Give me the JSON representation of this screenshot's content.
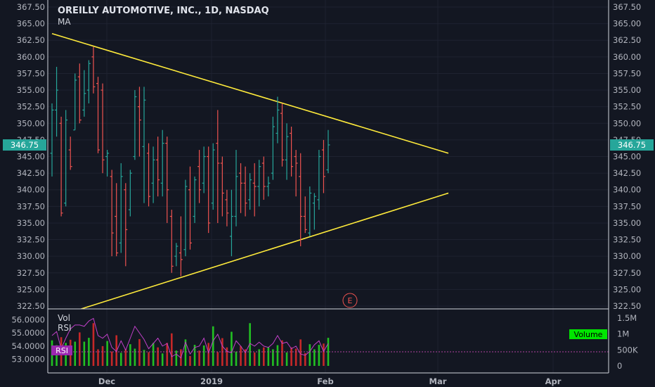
{
  "header": {
    "title": "OREILLY AUTOMOTIVE, INC., 1D, NASDAQ",
    "indicator": "MA"
  },
  "price": {
    "current": "346.75",
    "colors": {
      "up": "#26a69a",
      "down": "#ef5350",
      "trend": "#ffeb3b",
      "tag": "#26a69a"
    }
  },
  "earnings_marker": "E",
  "lower_pane": {
    "labels": [
      "Vol",
      "RSI"
    ],
    "rsi_tag": "RSI",
    "volume_tag": "Volume",
    "left_ticks": [
      "56.0000",
      "55.0000",
      "54.0000",
      "53.0000"
    ],
    "right_ticks": [
      "1.5M",
      "1M",
      "500K",
      "0"
    ]
  },
  "chart_data": {
    "type": "ohlc",
    "title": "OREILLY AUTOMOTIVE, INC., 1D, NASDAQ",
    "y_ticks": [
      "367.50",
      "365.00",
      "362.50",
      "360.00",
      "357.50",
      "355.00",
      "352.50",
      "350.00",
      "347.50",
      "345.00",
      "342.50",
      "340.00",
      "337.50",
      "335.00",
      "332.50",
      "330.00",
      "327.50",
      "325.00",
      "322.50"
    ],
    "ylim": [
      322.5,
      367.5
    ],
    "x_ticks": [
      "Dec",
      "2019",
      "Feb",
      "Mar",
      "Apr"
    ],
    "grid": true,
    "bars": [
      {
        "o": 345.5,
        "h": 353.0,
        "l": 342.0,
        "c": 352.0
      },
      {
        "o": 352.0,
        "h": 358.5,
        "l": 348.0,
        "c": 355.0
      },
      {
        "o": 350.0,
        "h": 351.0,
        "l": 336.0,
        "c": 336.5
      },
      {
        "o": 338.0,
        "h": 352.0,
        "l": 337.5,
        "c": 350.5
      },
      {
        "o": 346.0,
        "h": 348.0,
        "l": 343.0,
        "c": 343.5
      },
      {
        "o": 349.0,
        "h": 357.5,
        "l": 349.0,
        "c": 356.5
      },
      {
        "o": 357.0,
        "h": 359.0,
        "l": 350.0,
        "c": 350.5
      },
      {
        "o": 352.0,
        "h": 358.0,
        "l": 351.0,
        "c": 354.5
      },
      {
        "o": 355.0,
        "h": 359.5,
        "l": 353.0,
        "c": 359.0
      },
      {
        "o": 360.0,
        "h": 361.5,
        "l": 354.5,
        "c": 355.5
      },
      {
        "o": 356.0,
        "h": 357.0,
        "l": 345.5,
        "c": 346.0
      },
      {
        "o": 355.0,
        "h": 356.0,
        "l": 342.5,
        "c": 344.5
      },
      {
        "o": 345.0,
        "h": 346.0,
        "l": 342.0,
        "c": 345.5
      },
      {
        "o": 342.0,
        "h": 343.0,
        "l": 330.0,
        "c": 333.5
      },
      {
        "o": 336.0,
        "h": 341.0,
        "l": 330.0,
        "c": 330.5
      },
      {
        "o": 332.0,
        "h": 344.0,
        "l": 330.5,
        "c": 342.0
      },
      {
        "o": 340.0,
        "h": 341.0,
        "l": 328.5,
        "c": 334.0
      },
      {
        "o": 337.0,
        "h": 343.0,
        "l": 336.0,
        "c": 342.5
      },
      {
        "o": 345.0,
        "h": 355.0,
        "l": 344.5,
        "c": 354.0
      },
      {
        "o": 352.5,
        "h": 355.5,
        "l": 345.0,
        "c": 350.5
      },
      {
        "o": 346.5,
        "h": 355.5,
        "l": 338.0,
        "c": 353.5
      },
      {
        "o": 345.5,
        "h": 347.0,
        "l": 337.5,
        "c": 339.0
      },
      {
        "o": 341.0,
        "h": 346.5,
        "l": 338.0,
        "c": 344.5
      },
      {
        "o": 344.5,
        "h": 348.0,
        "l": 339.0,
        "c": 341.5
      },
      {
        "o": 341.0,
        "h": 349.0,
        "l": 339.0,
        "c": 347.0
      },
      {
        "o": 347.0,
        "h": 348.0,
        "l": 335.0,
        "c": 340.0
      },
      {
        "o": 336.0,
        "h": 337.0,
        "l": 327.5,
        "c": 328.5
      },
      {
        "o": 330.0,
        "h": 332.0,
        "l": 328.5,
        "c": 331.5
      },
      {
        "o": 330.5,
        "h": 336.0,
        "l": 327.0,
        "c": 329.5
      },
      {
        "o": 331.0,
        "h": 341.5,
        "l": 330.0,
        "c": 340.5
      },
      {
        "o": 340.0,
        "h": 343.5,
        "l": 331.0,
        "c": 332.0
      },
      {
        "o": 336.0,
        "h": 342.0,
        "l": 335.0,
        "c": 341.5
      },
      {
        "o": 343.5,
        "h": 346.0,
        "l": 338.0,
        "c": 340.0
      },
      {
        "o": 341.0,
        "h": 346.5,
        "l": 339.5,
        "c": 345.0
      },
      {
        "o": 345.0,
        "h": 346.5,
        "l": 333.5,
        "c": 335.0
      },
      {
        "o": 338.0,
        "h": 347.0,
        "l": 337.0,
        "c": 346.0
      },
      {
        "o": 347.0,
        "h": 352.0,
        "l": 335.0,
        "c": 344.0
      },
      {
        "o": 344.0,
        "h": 345.0,
        "l": 336.0,
        "c": 339.5
      },
      {
        "o": 338.5,
        "h": 340.0,
        "l": 334.5,
        "c": 336.5
      },
      {
        "o": 333.0,
        "h": 340.0,
        "l": 330.0,
        "c": 336.0
      },
      {
        "o": 336.0,
        "h": 346.0,
        "l": 334.5,
        "c": 342.0
      },
      {
        "o": 342.5,
        "h": 344.0,
        "l": 336.5,
        "c": 341.0
      },
      {
        "o": 341.0,
        "h": 343.5,
        "l": 336.0,
        "c": 338.0
      },
      {
        "o": 338.5,
        "h": 342.5,
        "l": 337.0,
        "c": 341.5
      },
      {
        "o": 341.0,
        "h": 344.0,
        "l": 336.0,
        "c": 340.5
      },
      {
        "o": 340.5,
        "h": 344.5,
        "l": 337.5,
        "c": 343.5
      },
      {
        "o": 344.0,
        "h": 345.0,
        "l": 338.5,
        "c": 340.5
      },
      {
        "o": 340.5,
        "h": 342.0,
        "l": 339.0,
        "c": 341.0
      },
      {
        "o": 342.5,
        "h": 351.0,
        "l": 341.5,
        "c": 349.5
      },
      {
        "o": 348.5,
        "h": 354.0,
        "l": 347.0,
        "c": 352.0
      },
      {
        "o": 351.5,
        "h": 353.0,
        "l": 343.5,
        "c": 344.5
      },
      {
        "o": 344.5,
        "h": 350.0,
        "l": 341.5,
        "c": 348.0
      },
      {
        "o": 348.5,
        "h": 349.5,
        "l": 342.0,
        "c": 343.5
      },
      {
        "o": 345.0,
        "h": 346.0,
        "l": 339.0,
        "c": 344.0
      },
      {
        "o": 342.0,
        "h": 345.5,
        "l": 331.5,
        "c": 336.0
      },
      {
        "o": 336.0,
        "h": 339.0,
        "l": 333.5,
        "c": 334.0
      },
      {
        "o": 333.5,
        "h": 340.5,
        "l": 333.0,
        "c": 339.5
      },
      {
        "o": 338.0,
        "h": 339.5,
        "l": 334.0,
        "c": 339.0
      },
      {
        "o": 338.5,
        "h": 346.0,
        "l": 337.0,
        "c": 345.0
      },
      {
        "o": 346.0,
        "h": 347.5,
        "l": 339.5,
        "c": 342.0
      },
      {
        "o": 343.0,
        "h": 349.0,
        "l": 342.5,
        "c": 346.75
      }
    ],
    "trendlines": [
      {
        "name": "upper",
        "from": [
          0,
          363.5
        ],
        "to": [
          80,
          345.5
        ]
      },
      {
        "name": "lower",
        "from": [
          6,
          322.0
        ],
        "to": [
          80,
          339.5
        ]
      }
    ],
    "volume": [
      800,
      650,
      900,
      720,
      820,
      760,
      1050,
      760,
      880,
      1340,
      520,
      620,
      780,
      450,
      960,
      410,
      520,
      680,
      540,
      840,
      500,
      430,
      720,
      580,
      390,
      720,
      1020,
      480,
      520,
      830,
      310,
      660,
      480,
      640,
      720,
      1240,
      430,
      870,
      580,
      1070,
      450,
      620,
      520,
      1340,
      420,
      520,
      580,
      590,
      520,
      650,
      800,
      420,
      580,
      540,
      830,
      400,
      680,
      520,
      660,
      700,
      880
    ],
    "rsi": [
      54.8,
      55.1,
      53.8,
      54.6,
      55.3,
      55.6,
      55.6,
      55.5,
      55.9,
      56.1,
      54.8,
      54.6,
      54.9,
      53.9,
      53.6,
      54.4,
      53.7,
      54.6,
      55.5,
      55.0,
      54.5,
      53.8,
      54.2,
      54.6,
      54.0,
      54.2,
      53.2,
      53.4,
      53.1,
      54.3,
      53.4,
      53.9,
      54.0,
      54.6,
      53.5,
      54.4,
      54.9,
      54.0,
      53.6,
      53.5,
      54.4,
      54.0,
      53.5,
      54.2,
      54.0,
      54.3,
      54.0,
      53.9,
      54.2,
      54.8,
      54.2,
      54.3,
      53.8,
      54.0,
      53.4,
      53.3,
      53.6,
      54.1,
      54.4,
      53.6,
      54.2
    ],
    "volume_scale": {
      "max": 1500,
      "unit": "K"
    },
    "rsi_scale": [
      52.5,
      56.5
    ]
  }
}
